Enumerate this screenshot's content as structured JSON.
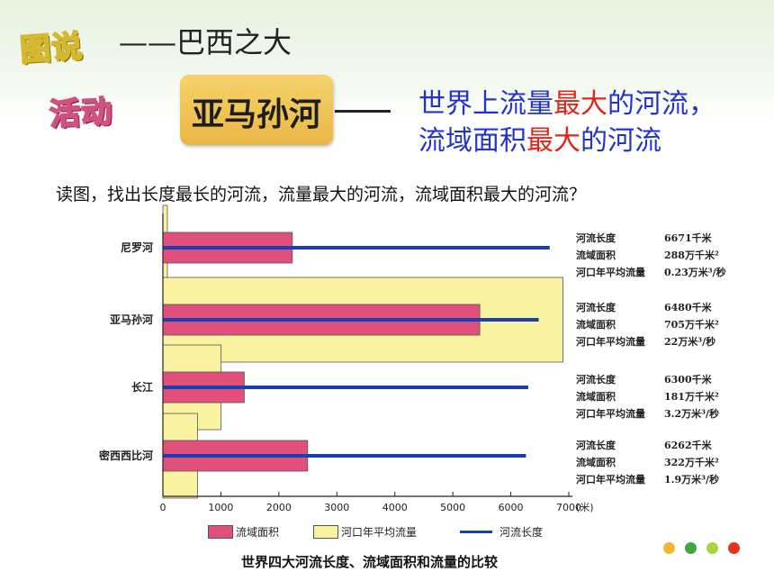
{
  "header": {
    "badge_tushuo": "图说",
    "subtitle": "——巴西之大",
    "badge_huodong": "活动",
    "river_label": "亚马孙河",
    "headline_1_pre": "世界上流量",
    "headline_1_red": "最大",
    "headline_1_post": "的河流，",
    "headline_2_pre": "流域面积",
    "headline_2_red": "最大",
    "headline_2_post": "的河流"
  },
  "question": "读图，找出长度最长的河流，流量最大的河流，流域面积最大的河流？",
  "chart_data": {
    "type": "bar",
    "orientation": "horizontal",
    "title": "世界四大河流长度、流域面积和流量的比较",
    "x_unit": "(米)",
    "xlim": [
      0,
      7000
    ],
    "xticks": [
      "0",
      "1000",
      "2000",
      "3000",
      "4000",
      "5000",
      "6000",
      "7000"
    ],
    "categories": [
      "尼罗河",
      "亚马孙河",
      "长江",
      "密西西比河"
    ],
    "series": [
      {
        "name": "流域面积",
        "unit": "万千米²",
        "values": [
          288,
          705,
          181,
          322
        ],
        "color": "#e0507a"
      },
      {
        "name": "河口年平均流量",
        "unit": "万米³/秒",
        "values": [
          0.23,
          22,
          3.2,
          1.9
        ],
        "color": "#f9f2a0"
      },
      {
        "name": "河流长度",
        "unit": "千米",
        "values": [
          6671,
          6480,
          6300,
          6262
        ],
        "color": "#1a3fb0"
      }
    ],
    "info": [
      {
        "length_key": "河流长度",
        "length": "6671千米",
        "area_key": "流域面积",
        "area": "288万千米²",
        "flow_key": "河口年平均流量",
        "flow": "0.23万米³/秒"
      },
      {
        "length_key": "河流长度",
        "length": "6480千米",
        "area_key": "流域面积",
        "area": "705万千米²",
        "flow_key": "河口年平均流量",
        "flow": "22万米³/秒"
      },
      {
        "length_key": "河流长度",
        "length": "6300千米",
        "area_key": "流域面积",
        "area": "181万千米²",
        "flow_key": "河口年平均流量",
        "flow": "3.2万米³/秒"
      },
      {
        "length_key": "河流长度",
        "length": "6262千米",
        "area_key": "流域面积",
        "area": "322万千米²",
        "flow_key": "河口年平均流量",
        "flow": "1.9万米³/秒"
      }
    ],
    "legend": [
      {
        "label": "流域面积",
        "color": "#e0507a"
      },
      {
        "label": "河口年平均流量",
        "color": "#f9f2a0"
      },
      {
        "label": "河流长度",
        "color": "#1a3fb0"
      }
    ]
  },
  "decor": {
    "dot_colors": [
      "#f2b630",
      "#3fa63f",
      "#a6d63a",
      "#e8321f"
    ]
  }
}
